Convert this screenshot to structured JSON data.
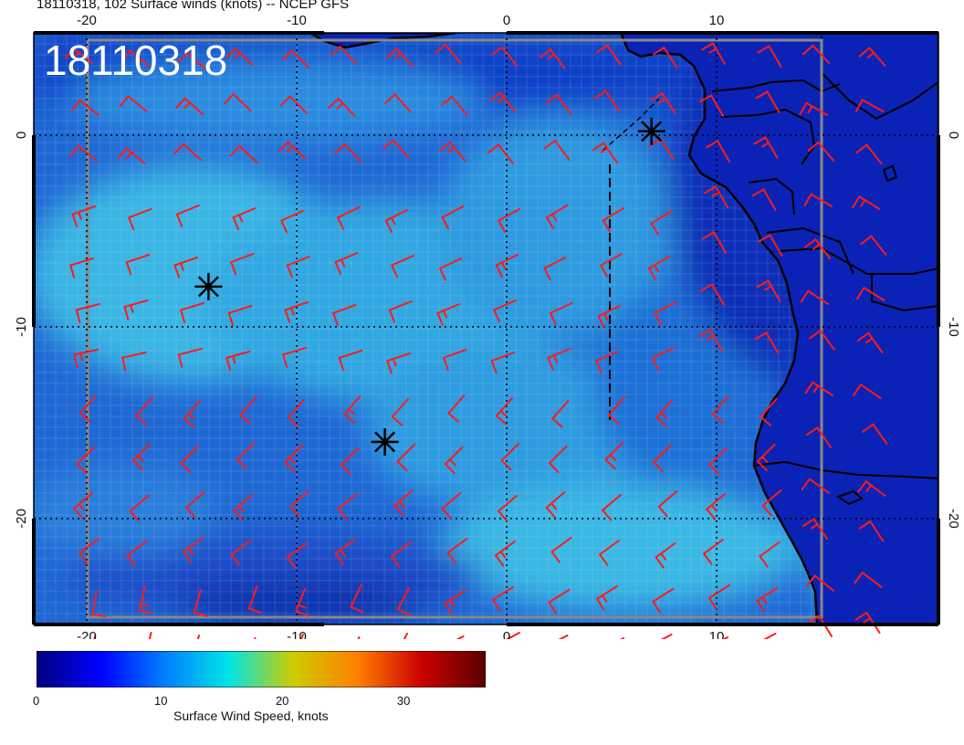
{
  "title": "18110318, 102 Surface winds (knots) -- NCEP GFS",
  "stamp": "18110318",
  "map": {
    "lon_range": [
      -22.5,
      20.5
    ],
    "lat_range": [
      -25,
      5
    ],
    "lon_ticks": [
      "-20",
      "-10",
      "0",
      "10"
    ],
    "lat_ticks": [
      "0",
      "-10",
      "-20"
    ],
    "grid_lines": true,
    "storm_markers": [
      {
        "name": "marker-north",
        "lon": 6.9,
        "lat": 0.2
      },
      {
        "name": "marker-west",
        "lon": -14.2,
        "lat": -7.9
      },
      {
        "name": "marker-south",
        "lon": -5.8,
        "lat": -16.0
      }
    ]
  },
  "colorbar": {
    "label": "Surface Wind Speed, knots",
    "ticks": [
      "0",
      "10",
      "20",
      "30"
    ],
    "min": 0,
    "max": 37,
    "colors": [
      "#00007f",
      "#0000ff",
      "#007fff",
      "#00e5e5",
      "#cccc00",
      "#ff8000",
      "#cc0000",
      "#5a0000"
    ]
  },
  "colors": {
    "ocean": "#1e64d2",
    "land": "#0a22b4",
    "barb": "#ff1a1a",
    "coast": "#000000"
  }
}
